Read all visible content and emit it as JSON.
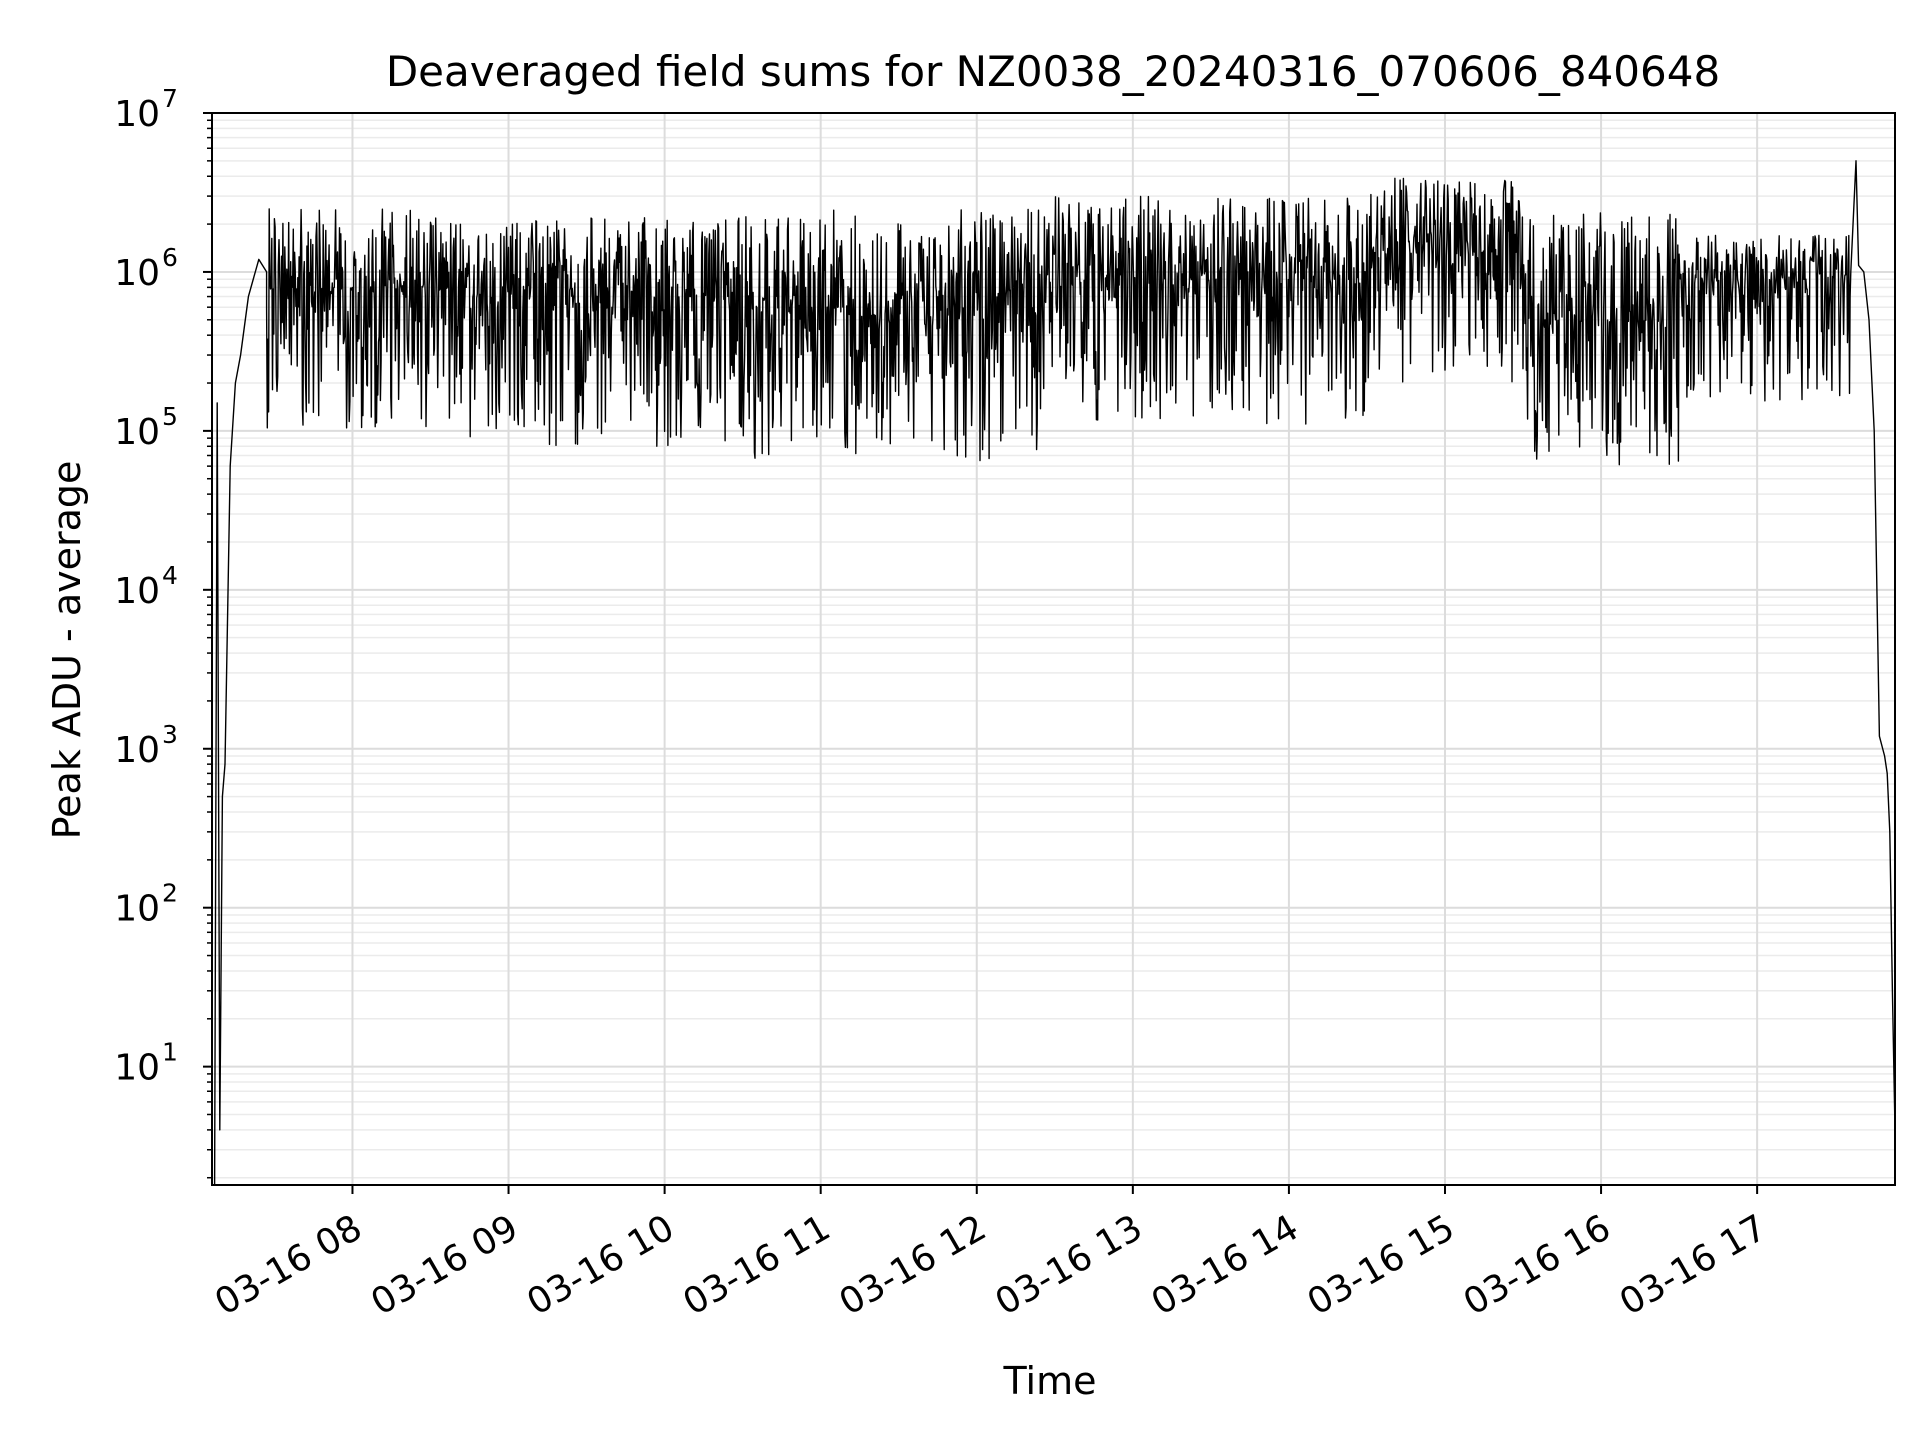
{
  "chart_data": {
    "type": "line",
    "title": "Deaveraged field sums for NZ0038_20240316_070606_840648",
    "xlabel": "Time",
    "ylabel": "Peak ADU - average",
    "yscale": "log",
    "ylim": [
      1.8,
      10000000
    ],
    "xlim": [
      "2024-03-16 07:06",
      "2024-03-16 17:53"
    ],
    "grid": true,
    "x_ticks": [
      {
        "label": "03-16 08",
        "t": "2024-03-16 08:00"
      },
      {
        "label": "03-16 09",
        "t": "2024-03-16 09:00"
      },
      {
        "label": "03-16 10",
        "t": "2024-03-16 10:00"
      },
      {
        "label": "03-16 11",
        "t": "2024-03-16 11:00"
      },
      {
        "label": "03-16 12",
        "t": "2024-03-16 12:00"
      },
      {
        "label": "03-16 13",
        "t": "2024-03-16 13:00"
      },
      {
        "label": "03-16 14",
        "t": "2024-03-16 14:00"
      },
      {
        "label": "03-16 15",
        "t": "2024-03-16 15:00"
      },
      {
        "label": "03-16 16",
        "t": "2024-03-16 16:00"
      },
      {
        "label": "03-16 17",
        "t": "2024-03-16 17:00"
      }
    ],
    "y_ticks": [
      {
        "base": "10",
        "exp": "1",
        "value": 10
      },
      {
        "base": "10",
        "exp": "2",
        "value": 100
      },
      {
        "base": "10",
        "exp": "3",
        "value": 1000
      },
      {
        "base": "10",
        "exp": "4",
        "value": 10000
      },
      {
        "base": "10",
        "exp": "5",
        "value": 100000
      },
      {
        "base": "10",
        "exp": "6",
        "value": 1000000
      },
      {
        "base": "10",
        "exp": "7",
        "value": 10000000
      }
    ],
    "series": [
      {
        "color": "#000000",
        "points": [
          [
            "2024-03-16 07:07",
            1.8
          ],
          [
            "2024-03-16 07:08",
            150000
          ],
          [
            "2024-03-16 07:09",
            4
          ],
          [
            "2024-03-16 07:10",
            500
          ],
          [
            "2024-03-16 07:11",
            800
          ],
          [
            "2024-03-16 07:13",
            60000
          ],
          [
            "2024-03-16 07:15",
            200000
          ],
          [
            "2024-03-16 07:17",
            300000
          ],
          [
            "2024-03-16 07:20",
            700000
          ],
          [
            "2024-03-16 07:24",
            1200000
          ],
          [
            "2024-03-16 07:27",
            1000000
          ],
          [
            "2024-03-16 17:36",
            1000000
          ],
          [
            "2024-03-16 17:38",
            5000000
          ],
          [
            "2024-03-16 17:39",
            1100000
          ],
          [
            "2024-03-16 17:41",
            1000000
          ],
          [
            "2024-03-16 17:43",
            500000
          ],
          [
            "2024-03-16 17:45",
            100000
          ],
          [
            "2024-03-16 17:47",
            1200
          ],
          [
            "2024-03-16 17:49",
            900
          ],
          [
            "2024-03-16 17:50",
            700
          ],
          [
            "2024-03-16 17:51",
            300
          ],
          [
            "2024-03-16 17:52",
            30
          ],
          [
            "2024-03-16 17:53",
            4
          ]
        ],
        "noisy_band": [
          {
            "from": "2024-03-16 07:27",
            "to": "2024-03-16 08:30",
            "median": 800000,
            "low": 100000,
            "high": 2500000
          },
          {
            "from": "2024-03-16 08:30",
            "to": "2024-03-16 10:30",
            "median": 700000,
            "low": 80000,
            "high": 2200000
          },
          {
            "from": "2024-03-16 10:30",
            "to": "2024-03-16 12:30",
            "median": 600000,
            "low": 65000,
            "high": 2500000
          },
          {
            "from": "2024-03-16 12:30",
            "to": "2024-03-16 14:30",
            "median": 900000,
            "low": 110000,
            "high": 3000000
          },
          {
            "from": "2024-03-16 14:30",
            "to": "2024-03-16 15:30",
            "median": 1300000,
            "low": 200000,
            "high": 4000000
          },
          {
            "from": "2024-03-16 15:30",
            "to": "2024-03-16 16:30",
            "median": 500000,
            "low": 60000,
            "high": 2500000
          },
          {
            "from": "2024-03-16 16:30",
            "to": "2024-03-16 17:36",
            "median": 900000,
            "low": 150000,
            "high": 1700000
          }
        ]
      }
    ]
  }
}
